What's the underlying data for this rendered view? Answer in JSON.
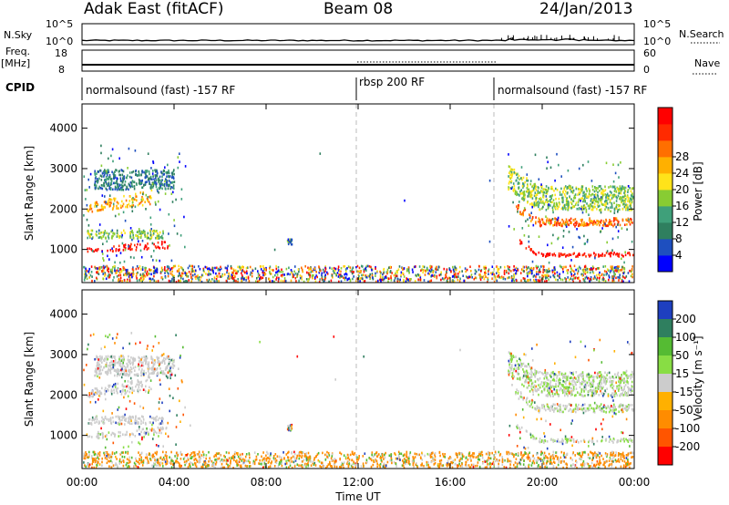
{
  "header": {
    "station": "Adak East (fitACF)",
    "beam": "Beam 08",
    "date": "24/Jan/2013"
  },
  "sidepanel": {
    "nsky_label": "N.Sky",
    "nsearch_label": "N.Search",
    "freq_label": "Freq.",
    "freq_unit": "[MHz]",
    "nave_label": "Nave",
    "cpid_label": "CPID",
    "nsky_ticks": [
      "10^5",
      "10^0"
    ],
    "nsearch_ticks": [
      "10^5",
      "10^0"
    ],
    "freq_ticks": [
      "18",
      "8"
    ],
    "nave_ticks": [
      "60",
      "0"
    ]
  },
  "cpid_segments": [
    {
      "label": "normalsound (fast) -157 RF",
      "start_hour": 0
    },
    {
      "label": "rbsp 200 RF",
      "start_hour": 12
    },
    {
      "label": "normalsound (fast) -157 RF",
      "start_hour": 18
    }
  ],
  "chart_data": [
    {
      "type": "heatmap",
      "name": "power-panel",
      "xlabel": "Time UT",
      "ylabel": "Slant Range [km]",
      "xlim": [
        0,
        24
      ],
      "ylim": [
        180,
        4600
      ],
      "x_ticks": [
        "00:00",
        "04:00",
        "08:00",
        "12:00",
        "16:00",
        "20:00",
        "00:00"
      ],
      "y_ticks": [
        1000,
        2000,
        3000,
        4000
      ],
      "colorbar": {
        "label": "Power [dB]",
        "ticks": [
          "4",
          "8",
          "12",
          "16",
          "20",
          "24",
          "28"
        ],
        "colors": [
          "#0000ff",
          "#1e4fbf",
          "#2f7f5f",
          "#3fa07a",
          "#88cc33",
          "#ffe31a",
          "#ffb000",
          "#ff6f00",
          "#ff2a00",
          "#ff0000"
        ]
      },
      "bands": [
        {
          "t0": 0.2,
          "t1": 3.7,
          "r0": 950,
          "r1": 1050,
          "r1_end": 1250,
          "level": 9
        },
        {
          "t0": 0.2,
          "t1": 3.5,
          "r0": 1300,
          "r1": 1500,
          "level": 4
        },
        {
          "t0": 0.2,
          "t1": 3.0,
          "r0": 1950,
          "r1_end": 2500,
          "r1": 2150,
          "level": 6
        },
        {
          "t0": 0.5,
          "t1": 4.0,
          "r0": 2500,
          "r1": 3000,
          "level": 2
        },
        {
          "t0": 18.8,
          "t1": 24.0,
          "r0": 850,
          "r1": 950,
          "level": 9
        },
        {
          "t0": 18.8,
          "t1": 24.0,
          "r0": 1600,
          "r1": 1800,
          "level": 7
        },
        {
          "t0": 18.5,
          "t1": 24.0,
          "r0": 2000,
          "r1": 2600,
          "level": 4
        }
      ]
    },
    {
      "type": "heatmap",
      "name": "velocity-panel",
      "xlabel": "Time UT",
      "ylabel": "Slant Range [km]",
      "xlim": [
        0,
        24
      ],
      "ylim": [
        180,
        4600
      ],
      "x_ticks": [
        "00:00",
        "04:00",
        "08:00",
        "12:00",
        "16:00",
        "20:00",
        "00:00"
      ],
      "y_ticks": [
        1000,
        2000,
        3000,
        4000
      ],
      "colorbar": {
        "label": "Velocity [m s⁻¹]",
        "ticks": [
          "200",
          "100",
          "50",
          "15",
          "-15",
          "-50",
          "-100",
          "-200"
        ],
        "colors": [
          "#1e3fbf",
          "#2f7f5f",
          "#55bb33",
          "#88dd44",
          "#cccccc",
          "#ffb000",
          "#ff8c00",
          "#ff5500",
          "#ff0000"
        ]
      }
    }
  ],
  "time_axis_label": "Time UT"
}
